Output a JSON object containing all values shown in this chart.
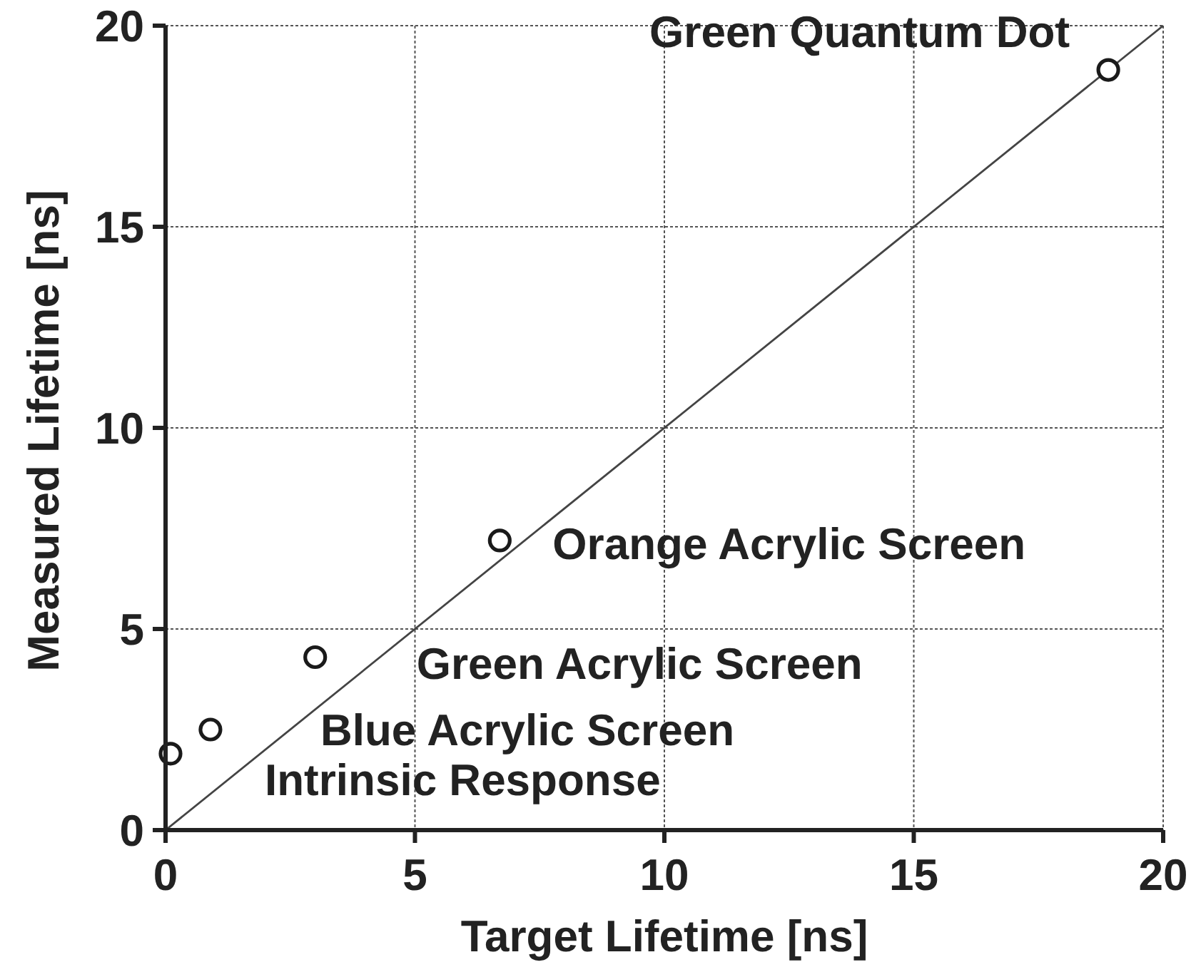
{
  "chart_data": {
    "type": "scatter",
    "xlabel": "Target Lifetime [ns]",
    "ylabel": "Measured Lifetime [ns]",
    "xlim": [
      0,
      20
    ],
    "ylim": [
      0,
      20
    ],
    "xticks": [
      0,
      5,
      10,
      15,
      20
    ],
    "yticks": [
      0,
      5,
      10,
      15,
      20
    ],
    "grid": true,
    "marker": "circle",
    "series": [
      {
        "type": "line",
        "color": "#444444",
        "x": [
          0,
          20
        ],
        "values": [
          0,
          20
        ],
        "marker": "none",
        "line_style": "solid"
      },
      {
        "color": "#1a1a1a",
        "x": [
          0.1,
          0.9,
          3.0,
          6.7,
          18.9
        ],
        "values": [
          1.9,
          2.5,
          4.3,
          7.2,
          18.9
        ]
      }
    ],
    "annotations": [
      {
        "text": "Intrinsic Response",
        "x": 0.1,
        "y": 1.9
      },
      {
        "text": "Blue Acrylic Screen",
        "x": 0.9,
        "y": 2.5
      },
      {
        "text": "Green Acrylic Screen",
        "x": 3.0,
        "y": 4.3
      },
      {
        "text": "Orange Acrylic Screen",
        "x": 6.7,
        "y": 7.2
      },
      {
        "text": "Green Quantum Dot",
        "x": 18.9,
        "y": 18.9
      }
    ]
  }
}
